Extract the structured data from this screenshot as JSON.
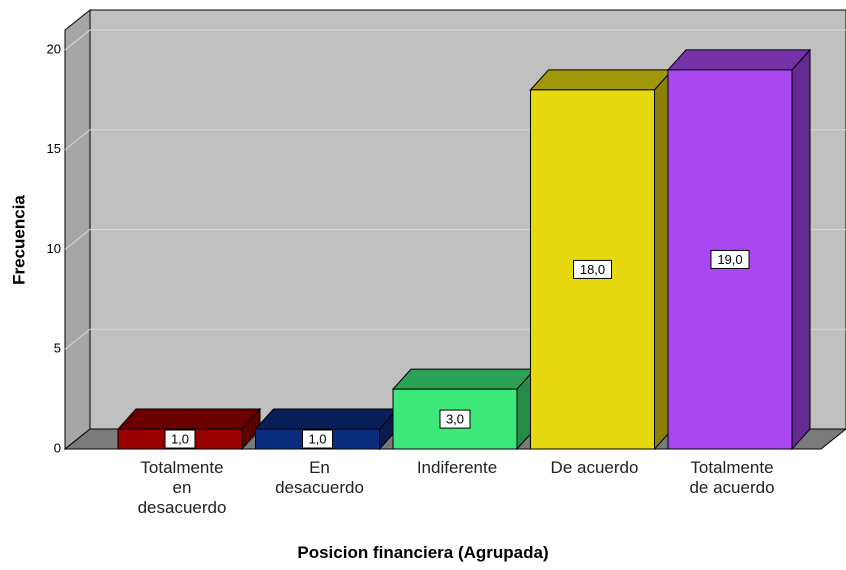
{
  "chart_data": {
    "type": "bar3d",
    "x_label": "Posicion financiera (Agrupada)",
    "y_label": "Frecuencia",
    "categories": [
      "Totalmente en desacuerdo",
      "En desacuerdo",
      "Indiferente",
      "De acuerdo",
      "Totalmente de acuerdo"
    ],
    "values": [
      1,
      1,
      3,
      18,
      19
    ],
    "value_labels": [
      "1,0",
      "1,0",
      "3,0",
      "18,0",
      "19,0"
    ],
    "colors": [
      "#990000",
      "#0b2d80",
      "#3de87a",
      "#e5d80f",
      "#a948f0"
    ],
    "ylim": [
      0,
      21
    ],
    "yticks": [
      0,
      5,
      10,
      15,
      20
    ],
    "grid": true
  }
}
